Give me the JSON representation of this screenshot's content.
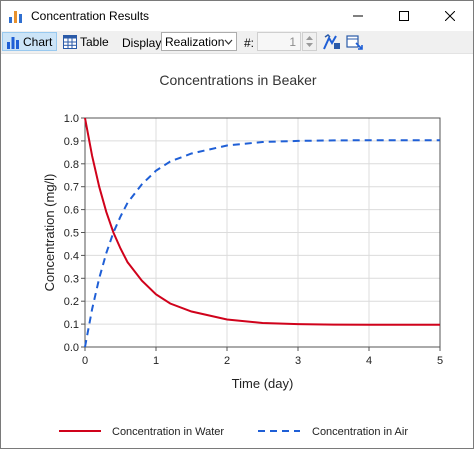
{
  "window": {
    "title": "Concentration Results"
  },
  "toolbar": {
    "chart_label": "Chart",
    "table_label": "Table",
    "display_label": "Display:",
    "display_value": "Realization",
    "number_label": "#:",
    "number_value": "1"
  },
  "chart_data": {
    "type": "line",
    "title": "Concentrations in Beaker",
    "xlabel": "Time (day)",
    "ylabel": "Concentration (mg/l)",
    "xlim": [
      0,
      5
    ],
    "ylim": [
      0,
      1.0
    ],
    "x_ticks": [
      "0",
      "1",
      "2",
      "3",
      "4",
      "5"
    ],
    "y_ticks": [
      "0.0",
      "0.1",
      "0.2",
      "0.3",
      "0.4",
      "0.5",
      "0.6",
      "0.7",
      "0.8",
      "0.9",
      "1.0"
    ],
    "grid": true,
    "legend_position": "bottom",
    "series": [
      {
        "name": "Concentration in Water",
        "color": "#d0021b",
        "style": "solid",
        "x": [
          0,
          0.1,
          0.2,
          0.3,
          0.4,
          0.5,
          0.6,
          0.8,
          1.0,
          1.2,
          1.5,
          2.0,
          2.5,
          3.0,
          3.5,
          4.0,
          4.5,
          5.0
        ],
        "y": [
          1.0,
          0.835,
          0.7,
          0.59,
          0.5,
          0.43,
          0.37,
          0.29,
          0.23,
          0.19,
          0.155,
          0.12,
          0.105,
          0.1,
          0.098,
          0.097,
          0.097,
          0.097
        ]
      },
      {
        "name": "Concentration in Air",
        "color": "#1f5fd6",
        "style": "dashed",
        "x": [
          0,
          0.1,
          0.2,
          0.3,
          0.4,
          0.5,
          0.6,
          0.8,
          1.0,
          1.2,
          1.5,
          2.0,
          2.5,
          3.0,
          3.5,
          4.0,
          4.5,
          5.0
        ],
        "y": [
          0.0,
          0.165,
          0.3,
          0.41,
          0.5,
          0.57,
          0.63,
          0.71,
          0.77,
          0.81,
          0.845,
          0.88,
          0.895,
          0.9,
          0.902,
          0.903,
          0.903,
          0.903
        ]
      }
    ]
  }
}
